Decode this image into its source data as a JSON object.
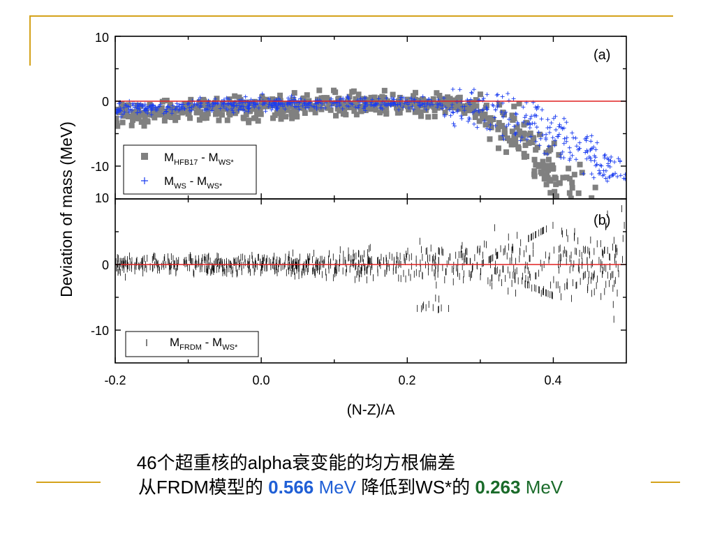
{
  "chart_data": [
    {
      "type": "scatter",
      "panel_label": "(a)",
      "ylabel": "Deviation of mass (MeV)",
      "xlabel": "(N-Z)/A",
      "xlim": [
        -0.2,
        0.5
      ],
      "ylim": [
        -15,
        10
      ],
      "x_ticks": [
        "-0.2",
        "0.0",
        "0.2",
        "0.4"
      ],
      "y_ticks": [
        "10",
        "0",
        "-10"
      ],
      "reference_line": 0,
      "legend_position": "bottom-left",
      "series": [
        {
          "name": "M_HFB17 - M_WS*",
          "marker": "square",
          "color": "#808080"
        },
        {
          "name": "M_WS - M_WS*",
          "marker": "plus",
          "color": "#1a3cf0"
        }
      ]
    },
    {
      "type": "scatter",
      "panel_label": "(b)",
      "xlabel": "(N-Z)/A",
      "xlim": [
        -0.2,
        0.5
      ],
      "ylim": [
        -15,
        10
      ],
      "x_ticks": [
        "-0.2",
        "0.0",
        "0.2",
        "0.4"
      ],
      "y_ticks": [
        "10",
        "0",
        "-10"
      ],
      "reference_line": 0,
      "legend_position": "bottom-left",
      "series": [
        {
          "name": "M_FRDM - M_WS*",
          "marker": "vertical-bar",
          "color": "#000000"
        }
      ]
    }
  ],
  "legend": {
    "a1_main": "M",
    "a1_sub1": "HFB17",
    "a1_mid": " - M",
    "a1_sub2": "WS*",
    "a2_main": "M",
    "a2_sub1": "WS",
    "a2_mid": " - M",
    "a2_sub2": "WS*",
    "b1_main": "M",
    "b1_sub1": "FRDM",
    "b1_mid": " - M",
    "b1_sub2": "WS*"
  },
  "caption": {
    "line1": "46个超重核的alpha衰变能的均方根偏差",
    "line2_prefix": "从FRDM模型的 ",
    "frdm_value": "0.566",
    "frdm_unit": " MeV",
    "line2_middle": " 降低到WS*的 ",
    "ws_value": "0.263",
    "ws_unit": " MeV"
  },
  "colors": {
    "deco": "#d4a21a",
    "reference_line": "#e02020",
    "hfb": "#808080",
    "ws": "#1a3cf0",
    "frdm": "#000000"
  }
}
